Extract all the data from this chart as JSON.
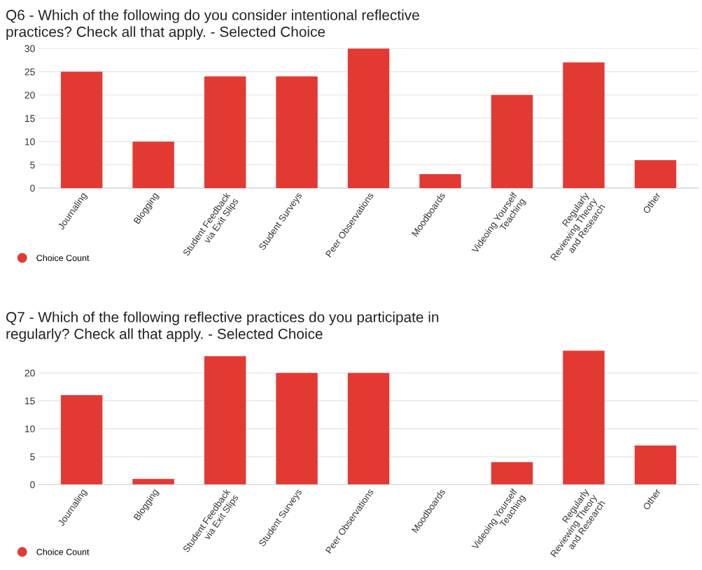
{
  "chart_data": [
    {
      "type": "bar",
      "title": "Q6 - Which of the following do you consider intentional reflective\npractices? Check all that apply. - Selected Choice",
      "categories": [
        "Journaling",
        "Blogging",
        "Student Feedback\nvia Exit Slips",
        "Student Surveys",
        "Peer Observations",
        "Moodboards",
        "Videoing Yourself\nTeaching",
        "Regularly\nReviewing Theory\nand Research",
        "Other"
      ],
      "series": [
        {
          "name": "Choice Count",
          "color": "#e23a33",
          "values": [
            25,
            10,
            24,
            24,
            30,
            3,
            20,
            27,
            6
          ]
        }
      ],
      "ylim": [
        0,
        30
      ],
      "yticks": [
        0,
        5,
        10,
        15,
        20,
        25,
        30
      ],
      "grid": "y",
      "legend": "bottom left",
      "marker": "circle"
    },
    {
      "type": "bar",
      "title": "Q7 - Which of the following reflective practices do you participate in\nregularly? Check all that apply. - Selected Choice",
      "categories": [
        "Journaling",
        "Blogging",
        "Student Feedback\nvia Exit Slips",
        "Student Surveys",
        "Peer Observations",
        "Moodboards",
        "Videoing Yourself\nTeaching",
        "Regularly\nReviewing Theory\nand Research",
        "Other"
      ],
      "series": [
        {
          "name": "Choice Count",
          "color": "#e23a33",
          "values": [
            16,
            1,
            23,
            20,
            20,
            0,
            4,
            24,
            7
          ]
        }
      ],
      "ylim": [
        0,
        24
      ],
      "yticks": [
        0,
        5,
        10,
        15,
        20
      ],
      "grid": "y",
      "legend": "bottom left",
      "marker": "circle"
    }
  ]
}
